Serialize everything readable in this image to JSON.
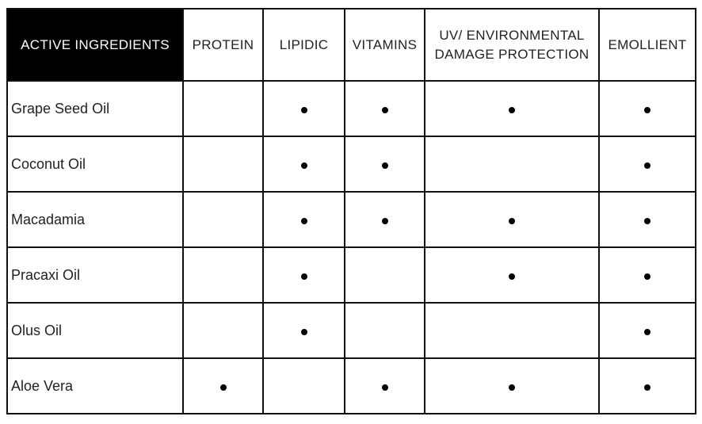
{
  "table": {
    "headers": [
      "ACTIVE INGREDIENTS",
      "PROTEIN",
      "LIPIDIC",
      "VITAMINS",
      "UV/ ENVIRONMENTAL DAMAGE PROTECTION",
      "EMOLLIENT"
    ],
    "header_fill": "#000000",
    "marker_icon": "bullet-dot",
    "rows": [
      {
        "ingredient": "Grape Seed Oil",
        "marks": [
          false,
          true,
          true,
          true,
          true
        ]
      },
      {
        "ingredient": "Coconut Oil",
        "marks": [
          false,
          true,
          true,
          false,
          true
        ]
      },
      {
        "ingredient": "Macadamia",
        "marks": [
          false,
          true,
          true,
          true,
          true
        ]
      },
      {
        "ingredient": "Pracaxi Oil",
        "marks": [
          false,
          true,
          false,
          true,
          true
        ]
      },
      {
        "ingredient": "Olus Oil",
        "marks": [
          false,
          true,
          false,
          false,
          true
        ]
      },
      {
        "ingredient": "Aloe Vera",
        "marks": [
          true,
          false,
          true,
          true,
          true
        ]
      }
    ]
  }
}
